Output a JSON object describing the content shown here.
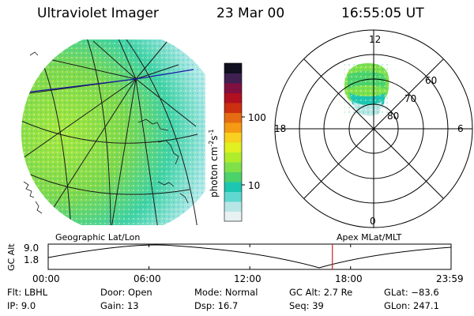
{
  "header": {
    "title": "Ultraviolet Imager",
    "date": "23 Mar 00",
    "time": "16:55:05 UT"
  },
  "colorbar": {
    "label": "photon cm",
    "label_exp": "-2",
    "label_unit": "s",
    "label_exp2": "-1",
    "tick_100": "100",
    "tick_10": "10",
    "colors": [
      "#e8f2f2",
      "#b8e6e6",
      "#5fd8d0",
      "#1cc6b0",
      "#4cd26a",
      "#7fe04a",
      "#b0ec2c",
      "#e0f020",
      "#f8d020",
      "#f59a14",
      "#e56c10",
      "#cc3010",
      "#b01020",
      "#801040",
      "#402050",
      "#101020"
    ]
  },
  "polar": {
    "mlt_12": "12",
    "mlt_18": "18",
    "mlt_6": "6",
    "mlt_0": "0",
    "lat_60": "60",
    "lat_70": "70",
    "lat_80": "80"
  },
  "timeline": {
    "left_label": "Geographic Lat/Lon",
    "right_label": "Apex MLat/MLT",
    "axis_label": "GC Alt",
    "y_top": "9.0",
    "y_bottom": "1.8",
    "ticks": [
      "00:00",
      "06:00",
      "12:00",
      "18:00",
      "23:59"
    ],
    "marker_time": "16:55",
    "marker_color": "#d02020"
  },
  "info": {
    "flt": "Flt: LBHL",
    "ip": "IP:  9.0",
    "door": "Door: Open",
    "gain": "Gain: 13",
    "mode": "Mode: Normal",
    "dsp": "Dsp:   16.7",
    "gcalt": "GC Alt: 2.7 Re",
    "seq": "Seq: 39",
    "glat": "GLat: −83.6",
    "glon": "GLon: 247.1"
  }
}
